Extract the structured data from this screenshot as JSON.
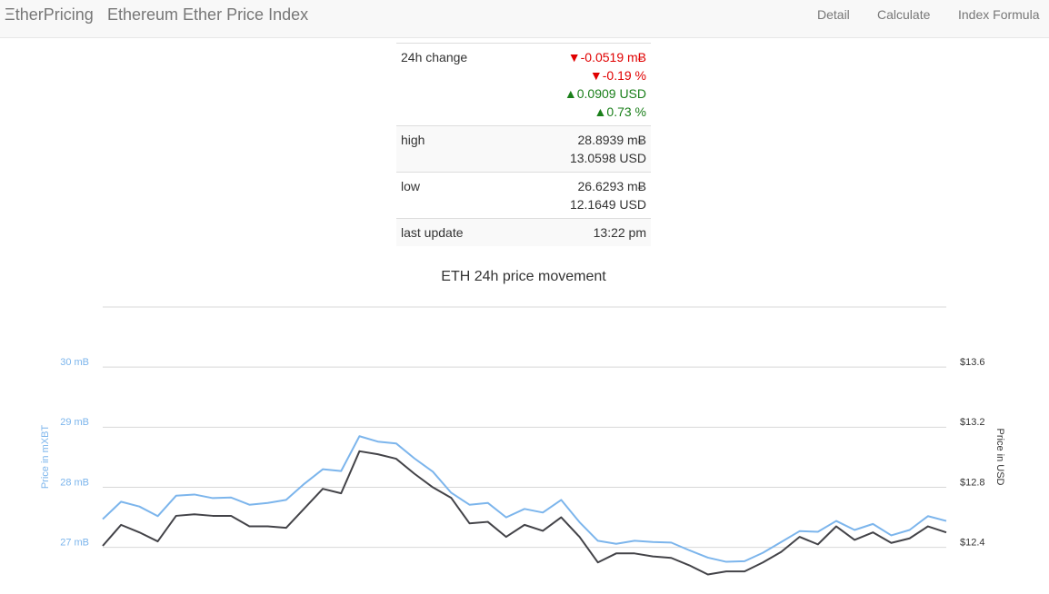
{
  "nav": {
    "brand": "ΞtherPricing",
    "title": "Ethereum Ether Price Index",
    "links": [
      "Detail",
      "Calculate",
      "Index Formula"
    ]
  },
  "table": {
    "rows": [
      {
        "label": "24h change",
        "lines": [
          {
            "text": "▼-0.0519 mɃ",
            "color": "#e00000"
          },
          {
            "text": "▼-0.19 %",
            "color": "#e00000"
          },
          {
            "text": "▲0.0909 USD",
            "color": "#1a7f1a"
          },
          {
            "text": "▲0.73 %",
            "color": "#1a7f1a"
          }
        ]
      },
      {
        "label": "high",
        "lines": [
          {
            "text": "28.8939 mɃ"
          },
          {
            "text": "13.0598 USD"
          }
        ]
      },
      {
        "label": "low",
        "lines": [
          {
            "text": "26.6293 mɃ"
          },
          {
            "text": "12.1649 USD"
          }
        ]
      },
      {
        "label": "last update",
        "lines": [
          {
            "text": "13:22 pm"
          }
        ]
      }
    ]
  },
  "chart_data": {
    "type": "line",
    "title": "ETH 24h price movement",
    "y_label": "Price in mXBT",
    "y2_label": "Price in USD",
    "ylim": [
      26.3,
      31
    ],
    "yticks": [
      {
        "value": 27,
        "label": "27 mB"
      },
      {
        "value": 28,
        "label": "28 mB"
      },
      {
        "value": 29,
        "label": "29 mB"
      },
      {
        "value": 30,
        "label": "30 mB"
      }
    ],
    "y2lim": [
      12.12,
      14.0
    ],
    "y2ticks": [
      {
        "value": 12.4,
        "label": "$12.4"
      },
      {
        "value": 12.8,
        "label": "$12.8"
      },
      {
        "value": 13.2,
        "label": "$13.2"
      },
      {
        "value": 13.6,
        "label": "$13.6"
      }
    ],
    "grid": true,
    "series": [
      {
        "name": "Price in mXBT",
        "color": "#7cb5ec",
        "axis": "y",
        "values": [
          27.47,
          27.76,
          27.68,
          27.52,
          27.86,
          27.88,
          27.82,
          27.83,
          27.71,
          27.74,
          27.79,
          28.06,
          28.3,
          28.27,
          28.85,
          28.76,
          28.73,
          28.48,
          28.26,
          27.91,
          27.71,
          27.74,
          27.5,
          27.64,
          27.58,
          27.79,
          27.42,
          27.11,
          27.06,
          27.11,
          27.09,
          27.08,
          26.95,
          26.83,
          26.76,
          26.77,
          26.91,
          27.09,
          27.27,
          27.26,
          27.44,
          27.29,
          27.39,
          27.2,
          27.29,
          27.52,
          27.44
        ]
      },
      {
        "name": "Price in USD",
        "color": "#434348",
        "axis": "y2",
        "values": [
          12.41,
          12.55,
          12.5,
          12.44,
          12.61,
          12.62,
          12.61,
          12.61,
          12.54,
          12.54,
          12.53,
          12.66,
          12.79,
          12.76,
          13.04,
          13.02,
          12.99,
          12.89,
          12.8,
          12.73,
          12.56,
          12.57,
          12.47,
          12.55,
          12.51,
          12.6,
          12.47,
          12.3,
          12.36,
          12.36,
          12.34,
          12.33,
          12.28,
          12.22,
          12.24,
          12.24,
          12.3,
          12.37,
          12.47,
          12.42,
          12.54,
          12.45,
          12.5,
          12.43,
          12.46,
          12.54,
          12.5
        ]
      }
    ]
  }
}
